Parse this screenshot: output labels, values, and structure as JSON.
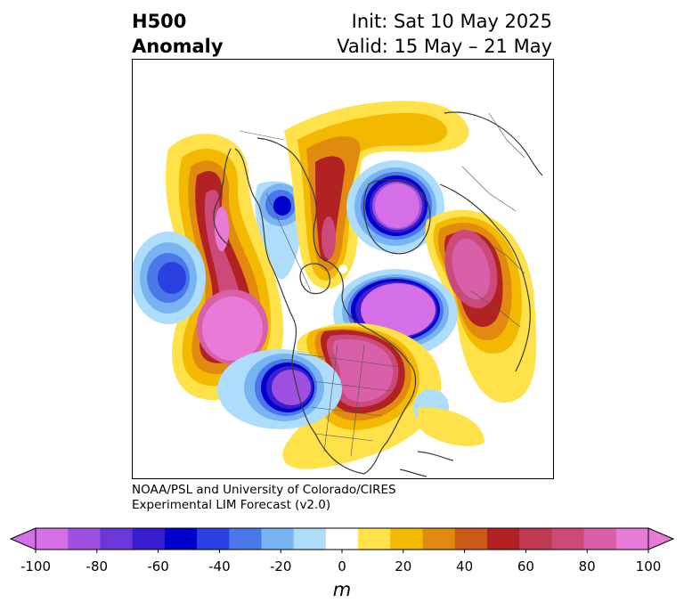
{
  "title": {
    "left_line1": "H500",
    "left_line2": "Anomaly",
    "right_line1": "Init: Sat 10 May 2025",
    "right_line2": "Valid: 15 May – 21 May"
  },
  "credit": {
    "line1": "NOAA/PSL and University of Colorado/CIRES",
    "line2": "Experimental LIM Forecast (v2.0)"
  },
  "colorbar": {
    "unit": "m",
    "tick_labels": [
      "-100",
      "-80",
      "-60",
      "-40",
      "-20",
      "0",
      "20",
      "40",
      "60",
      "80",
      "100"
    ],
    "tick_values": [
      -100,
      -80,
      -60,
      -40,
      -20,
      0,
      20,
      40,
      60,
      80,
      100
    ],
    "levels": [
      -100,
      -90,
      -80,
      -70,
      -60,
      -50,
      -40,
      -30,
      -20,
      -10,
      10,
      20,
      30,
      40,
      50,
      60,
      70,
      80,
      90,
      100
    ],
    "colors": [
      "#d56fe8",
      "#a050e0",
      "#6a38d8",
      "#3a1fd0",
      "#0000cc",
      "#2a40e0",
      "#4a78e8",
      "#78b4f2",
      "#aedcfb",
      "#ffffff",
      "#ffe14a",
      "#f3b800",
      "#e08a10",
      "#cc5a18",
      "#b22222",
      "#c23a52",
      "#cc4a7a",
      "#d85fa8",
      "#e87ad8"
    ],
    "extend_low_color": "#d56fe8",
    "extend_high_color": "#e87ad8"
  },
  "map": {
    "projection": "north-polar",
    "field": "500 hPa geopotential height anomaly"
  }
}
